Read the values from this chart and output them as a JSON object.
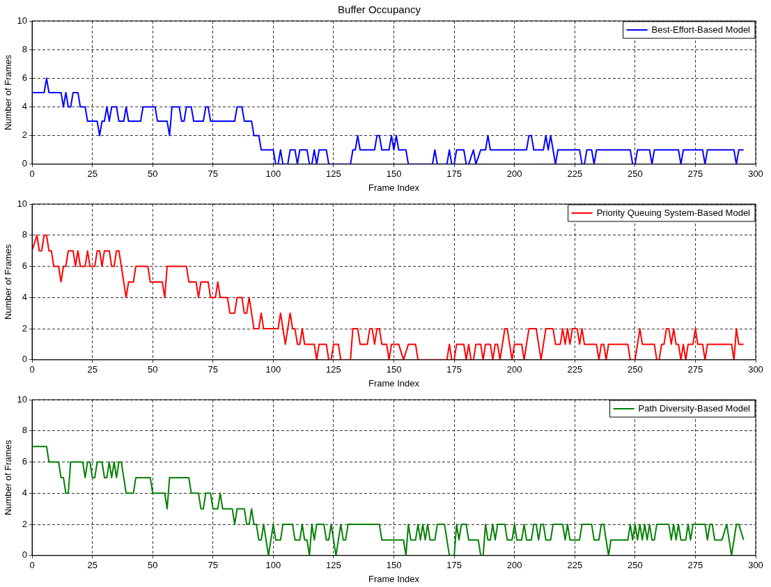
{
  "chart_data": [
    {
      "type": "line",
      "title": "Buffer Occupancy",
      "xlabel": "Frame Index",
      "ylabel": "Number of Frames",
      "xlim": [
        0,
        300
      ],
      "xticks": [
        0,
        25,
        50,
        75,
        100,
        125,
        150,
        175,
        200,
        225,
        250,
        275,
        300
      ],
      "ylim": [
        0,
        10
      ],
      "yticks": [
        0,
        2,
        4,
        6,
        8,
        10
      ],
      "grid": true,
      "legend": "top right",
      "line_style": "solid",
      "marker": "none",
      "series": [
        {
          "name": "Best-Effort-Based Model",
          "color": "#0000ff",
          "x": [
            0,
            5,
            6,
            7,
            12,
            13,
            14,
            15,
            16,
            17,
            19,
            20,
            22,
            23,
            27,
            28,
            29,
            30,
            31,
            32,
            33,
            35,
            36,
            38,
            39,
            40,
            45,
            46,
            51,
            52,
            56,
            57,
            58,
            61,
            62,
            63,
            64,
            66,
            67,
            71,
            72,
            73,
            74,
            84,
            85,
            87,
            88,
            91,
            92,
            94,
            95,
            100,
            101,
            102,
            103,
            104,
            106,
            107,
            109,
            110,
            111,
            114,
            115,
            116,
            117,
            118,
            119,
            122,
            123,
            132,
            133,
            134,
            135,
            136,
            142,
            143,
            144,
            145,
            148,
            149,
            150,
            151,
            152,
            155,
            156,
            166,
            167,
            168,
            172,
            173,
            174,
            175,
            176,
            179,
            180,
            181,
            183,
            184,
            186,
            188,
            189,
            190,
            205,
            206,
            207,
            208,
            212,
            213,
            214,
            215,
            216,
            217,
            218,
            227,
            228,
            229,
            230,
            232,
            233,
            234,
            248,
            249,
            250,
            251,
            256,
            257,
            258,
            268,
            269,
            270,
            278,
            279,
            280,
            291,
            292,
            293,
            295
          ],
          "values": [
            5,
            5,
            6,
            5,
            5,
            4,
            5,
            4,
            4,
            5,
            5,
            4,
            4,
            3,
            3,
            2,
            3,
            3,
            4,
            3,
            4,
            4,
            3,
            3,
            4,
            3,
            3,
            4,
            4,
            3,
            3,
            2,
            4,
            4,
            3,
            3,
            4,
            4,
            3,
            3,
            4,
            4,
            3,
            3,
            4,
            4,
            3,
            3,
            2,
            2,
            1,
            1,
            0,
            0,
            1,
            0,
            0,
            1,
            1,
            0,
            1,
            1,
            0,
            0,
            1,
            0,
            1,
            1,
            0,
            0,
            1,
            1,
            2,
            1,
            1,
            2,
            2,
            1,
            1,
            2,
            1,
            2,
            1,
            1,
            0,
            0,
            1,
            0,
            0,
            1,
            0,
            0,
            1,
            1,
            0,
            0,
            1,
            0,
            1,
            1,
            2,
            1,
            1,
            2,
            2,
            1,
            1,
            2,
            1,
            2,
            1,
            0,
            1,
            1,
            0,
            0,
            1,
            1,
            0,
            1,
            1,
            0,
            0,
            1,
            1,
            0,
            1,
            1,
            0,
            1,
            1,
            0,
            1,
            1,
            0,
            1,
            1
          ]
        }
      ]
    },
    {
      "type": "line",
      "xlabel": "Frame Index",
      "ylabel": "Number of Frames",
      "xlim": [
        0,
        300
      ],
      "xticks": [
        0,
        25,
        50,
        75,
        100,
        125,
        150,
        175,
        200,
        225,
        250,
        275,
        300
      ],
      "ylim": [
        0,
        10
      ],
      "yticks": [
        0,
        2,
        4,
        6,
        8,
        10
      ],
      "grid": true,
      "legend": "top right",
      "line_style": "solid",
      "marker": "none",
      "series": [
        {
          "name": "Priority Queuing System-Based Model",
          "color": "#ff0000",
          "x": [
            0,
            2,
            3,
            4,
            5,
            6,
            7,
            8,
            9,
            11,
            12,
            13,
            14,
            15,
            17,
            18,
            19,
            20,
            22,
            23,
            24,
            26,
            27,
            28,
            29,
            30,
            32,
            33,
            34,
            35,
            36,
            37,
            39,
            40,
            42,
            43,
            48,
            49,
            54,
            55,
            56,
            64,
            65,
            68,
            69,
            70,
            73,
            74,
            76,
            77,
            78,
            81,
            82,
            84,
            85,
            87,
            88,
            89,
            90,
            92,
            94,
            95,
            96,
            102,
            103,
            105,
            107,
            108,
            109,
            110,
            111,
            112,
            113,
            117,
            118,
            119,
            122,
            123,
            124,
            125,
            127,
            128,
            132,
            133,
            135,
            136,
            139,
            140,
            141,
            142,
            143,
            144,
            145,
            147,
            148,
            149,
            152,
            154,
            156,
            159,
            160,
            172,
            173,
            174,
            175,
            176,
            179,
            180,
            181,
            182,
            183,
            184,
            186,
            187,
            188,
            190,
            191,
            192,
            193,
            194,
            195,
            196,
            197,
            198,
            199,
            200,
            203,
            204,
            205,
            206,
            209,
            210,
            211,
            212,
            213,
            216,
            217,
            219,
            220,
            221,
            222,
            223,
            224,
            226,
            227,
            228,
            229,
            234,
            235,
            236,
            237,
            238,
            239,
            247,
            248,
            250,
            251,
            252,
            253,
            258,
            259,
            260,
            261,
            262,
            263,
            264,
            265,
            266,
            267,
            268,
            269,
            270,
            271,
            272,
            274,
            275,
            276,
            278,
            279,
            280,
            290,
            291,
            292,
            293,
            295
          ],
          "values": [
            7,
            8,
            7,
            7,
            8,
            8,
            7,
            7,
            6,
            6,
            5,
            6,
            6,
            7,
            7,
            6,
            7,
            6,
            6,
            7,
            6,
            6,
            7,
            7,
            6,
            7,
            7,
            6,
            6,
            7,
            7,
            6,
            4,
            5,
            5,
            6,
            6,
            5,
            5,
            4,
            6,
            6,
            5,
            5,
            4,
            5,
            5,
            4,
            4,
            5,
            4,
            4,
            3,
            3,
            4,
            4,
            3,
            3,
            4,
            2,
            2,
            3,
            2,
            2,
            3,
            1,
            3,
            2,
            2,
            1,
            1,
            2,
            1,
            1,
            0,
            1,
            1,
            0,
            0,
            1,
            1,
            0,
            0,
            2,
            2,
            1,
            1,
            2,
            2,
            1,
            2,
            2,
            1,
            1,
            0,
            1,
            1,
            0,
            1,
            1,
            0,
            0,
            1,
            0,
            0,
            1,
            1,
            0,
            1,
            0,
            0,
            1,
            1,
            0,
            1,
            1,
            0,
            1,
            1,
            0,
            1,
            2,
            2,
            1,
            0,
            1,
            1,
            0,
            1,
            2,
            2,
            1,
            0,
            1,
            2,
            2,
            1,
            1,
            2,
            1,
            2,
            1,
            2,
            2,
            1,
            2,
            1,
            1,
            0,
            1,
            1,
            0,
            1,
            1,
            0,
            0,
            1,
            2,
            1,
            1,
            0,
            0,
            1,
            1,
            2,
            2,
            1,
            2,
            1,
            1,
            0,
            1,
            0,
            1,
            1,
            2,
            1,
            1,
            0,
            1,
            1,
            0,
            2,
            1,
            1
          ]
        }
      ]
    },
    {
      "type": "line",
      "xlabel": "Frame Index",
      "ylabel": "Number of Frames",
      "xlim": [
        0,
        300
      ],
      "xticks": [
        0,
        25,
        50,
        75,
        100,
        125,
        150,
        175,
        200,
        225,
        250,
        275,
        300
      ],
      "ylim": [
        0,
        10
      ],
      "yticks": [
        0,
        2,
        4,
        6,
        8,
        10
      ],
      "grid": true,
      "legend": "top right",
      "line_style": "solid",
      "marker": "none",
      "series": [
        {
          "name": "Path Diversity-Based Model",
          "color": "#008000",
          "x": [
            0,
            6,
            7,
            11,
            12,
            13,
            14,
            15,
            16,
            21,
            22,
            23,
            24,
            25,
            26,
            27,
            29,
            30,
            31,
            32,
            33,
            34,
            35,
            36,
            37,
            39,
            42,
            43,
            49,
            50,
            55,
            56,
            57,
            65,
            66,
            69,
            70,
            71,
            72,
            74,
            75,
            77,
            78,
            79,
            83,
            84,
            85,
            88,
            89,
            90,
            91,
            92,
            93,
            94,
            95,
            96,
            97,
            98,
            100,
            101,
            103,
            104,
            108,
            109,
            111,
            112,
            113,
            114,
            115,
            116,
            117,
            118,
            121,
            122,
            123,
            124,
            126,
            127,
            128,
            129,
            130,
            131,
            144,
            145,
            154,
            155,
            156,
            157,
            159,
            160,
            161,
            162,
            163,
            164,
            165,
            167,
            168,
            171,
            173,
            175,
            176,
            177,
            178,
            180,
            181,
            185,
            186,
            187,
            188,
            189,
            190,
            191,
            192,
            193,
            196,
            197,
            199,
            200,
            201,
            203,
            204,
            205,
            207,
            208,
            209,
            210,
            211,
            212,
            213,
            215,
            216,
            220,
            221,
            222,
            223,
            227,
            228,
            232,
            233,
            235,
            236,
            237,
            239,
            240,
            247,
            248,
            249,
            250,
            251,
            252,
            253,
            254,
            255,
            256,
            257,
            258,
            259,
            264,
            265,
            266,
            267,
            268,
            269,
            271,
            272,
            273,
            274,
            279,
            280,
            281,
            282,
            283,
            286,
            288,
            290,
            292,
            293,
            295
          ],
          "values": [
            7,
            7,
            6,
            6,
            5,
            5,
            4,
            4,
            6,
            6,
            5,
            6,
            6,
            5,
            5,
            6,
            6,
            5,
            5,
            6,
            5,
            6,
            5,
            6,
            6,
            4,
            4,
            5,
            5,
            4,
            4,
            3,
            5,
            5,
            4,
            4,
            3,
            3,
            4,
            4,
            3,
            3,
            4,
            3,
            3,
            2,
            3,
            3,
            2,
            2,
            3,
            2,
            2,
            1,
            1,
            2,
            1,
            0,
            2,
            1,
            1,
            2,
            2,
            1,
            1,
            2,
            1,
            1,
            0,
            2,
            1,
            2,
            2,
            1,
            1,
            2,
            0,
            1,
            2,
            1,
            1,
            2,
            2,
            1,
            1,
            0,
            2,
            1,
            1,
            2,
            1,
            2,
            1,
            2,
            1,
            1,
            2,
            2,
            0,
            0,
            2,
            1,
            2,
            2,
            1,
            1,
            0,
            0,
            2,
            1,
            1,
            2,
            1,
            2,
            2,
            1,
            1,
            2,
            1,
            1,
            2,
            1,
            1,
            2,
            2,
            1,
            2,
            2,
            1,
            1,
            2,
            2,
            1,
            2,
            1,
            1,
            2,
            2,
            1,
            1,
            2,
            2,
            0,
            1,
            1,
            2,
            1,
            2,
            1,
            2,
            1,
            2,
            1,
            2,
            1,
            1,
            2,
            2,
            1,
            2,
            1,
            2,
            1,
            1,
            2,
            1,
            2,
            2,
            1,
            2,
            2,
            1,
            1,
            2,
            0,
            2,
            2,
            1
          ]
        }
      ]
    }
  ]
}
